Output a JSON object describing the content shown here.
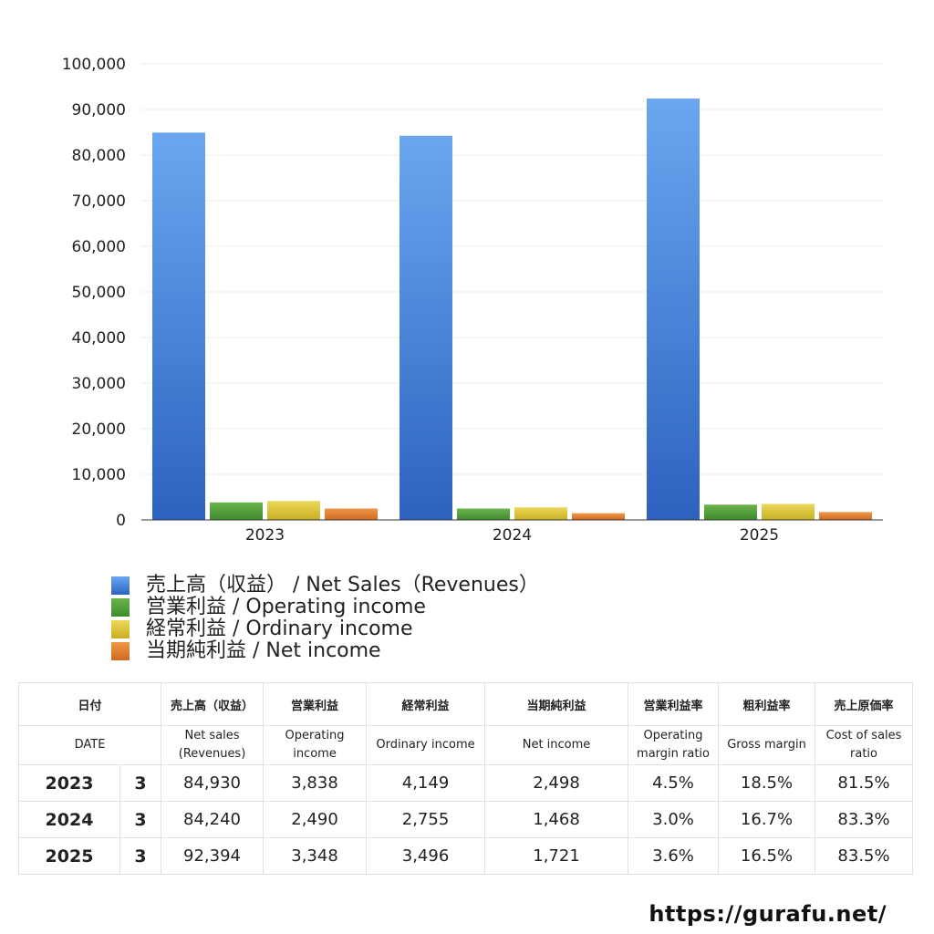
{
  "chart_data": {
    "type": "bar",
    "categories": [
      "2023",
      "2024",
      "2025"
    ],
    "series": [
      {
        "name": "売上高（収益） / Net Sales（Revenues）",
        "values": [
          84930,
          84240,
          92394
        ],
        "color_top": "#6aa7f0",
        "color_bottom": "#2d62bf"
      },
      {
        "name": "営業利益 / Operating income",
        "values": [
          3838,
          2490,
          3348
        ],
        "color_top": "#6cb34c",
        "color_bottom": "#3d8b2e"
      },
      {
        "name": "経常利益 / Ordinary income",
        "values": [
          4149,
          2755,
          3496
        ],
        "color_top": "#ecd85a",
        "color_bottom": "#c8ae22"
      },
      {
        "name": "当期純利益 / Net income",
        "values": [
          2498,
          1468,
          1721
        ],
        "color_top": "#ee9848",
        "color_bottom": "#cf6a22"
      }
    ],
    "ylim": [
      0,
      100000
    ],
    "yticks": [
      "0",
      "10,000",
      "20,000",
      "30,000",
      "40,000",
      "50,000",
      "60,000",
      "70,000",
      "80,000",
      "90,000",
      "100,000"
    ],
    "grid": true,
    "legend_position": "bottom-left"
  },
  "table": {
    "header_jp": [
      "日付",
      "売上高（収益）",
      "営業利益",
      "経常利益",
      "当期純利益",
      "営業利益率",
      "粗利益率",
      "売上原価率"
    ],
    "header_en": [
      "DATE",
      "Net sales (Revenues)",
      "Operating income",
      "Ordinary income",
      "Net income",
      "Operating margin ratio",
      "Gross margin",
      "Cost of sales ratio"
    ],
    "header_en_lines": [
      [
        "DATE"
      ],
      [
        "Net sales",
        "(Revenues)"
      ],
      [
        "Operating",
        "income"
      ],
      [
        "Ordinary income"
      ],
      [
        "Net income"
      ],
      [
        "Operating",
        "margin ratio"
      ],
      [
        "Gross margin"
      ],
      [
        "Cost of sales",
        "ratio"
      ]
    ],
    "rows": [
      {
        "year": "2023",
        "month": "3",
        "net_sales": "84,930",
        "operating_income": "3,838",
        "ordinary_income": "4,149",
        "net_income": "2,498",
        "operating_margin": "4.5%",
        "gross_margin": "18.5%",
        "cost_ratio": "81.5%"
      },
      {
        "year": "2024",
        "month": "3",
        "net_sales": "84,240",
        "operating_income": "2,490",
        "ordinary_income": "2,755",
        "net_income": "1,468",
        "operating_margin": "3.0%",
        "gross_margin": "16.7%",
        "cost_ratio": "83.3%"
      },
      {
        "year": "2025",
        "month": "3",
        "net_sales": "92,394",
        "operating_income": "3,348",
        "ordinary_income": "3,496",
        "net_income": "1,721",
        "operating_margin": "3.6%",
        "gross_margin": "16.5%",
        "cost_ratio": "83.5%"
      }
    ]
  },
  "watermark": "https://gurafu.net/"
}
